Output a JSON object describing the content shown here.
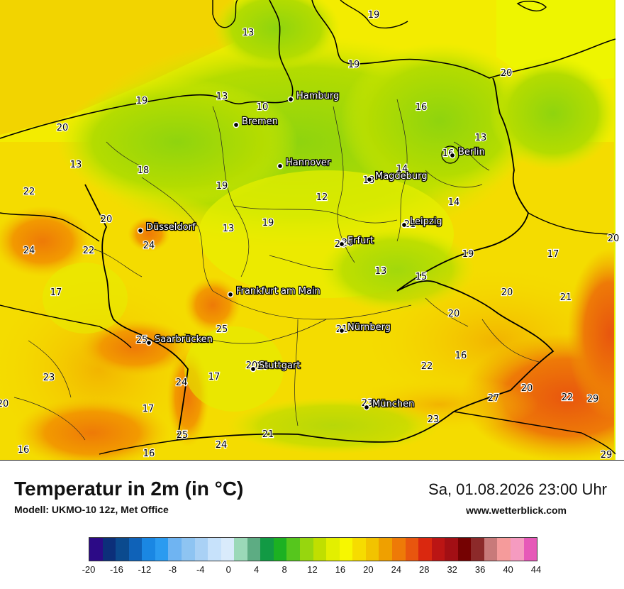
{
  "map": {
    "cities": [
      {
        "name": "Hamburg"
      },
      {
        "name": "Bremen"
      },
      {
        "name": "Berlin"
      },
      {
        "name": "Hannover"
      },
      {
        "name": "Magdeburg"
      },
      {
        "name": "Düsseldorf"
      },
      {
        "name": "Leipzig"
      },
      {
        "name": "Erfurt"
      },
      {
        "name": "Frankfurt am Main"
      },
      {
        "name": "Nürnberg"
      },
      {
        "name": "Saarbrücken"
      },
      {
        "name": "Stuttgart"
      },
      {
        "name": "München"
      }
    ],
    "values": [
      "13",
      "19",
      "19",
      "20",
      "10",
      "16",
      "19",
      "13",
      "20",
      "18",
      "13",
      "13",
      "16",
      "19",
      "12",
      "14",
      "22",
      "14",
      "13",
      "19",
      "24",
      "22",
      "24",
      "18",
      "20",
      "17",
      "13",
      "15",
      "20",
      "21",
      "25",
      "20",
      "25",
      "21",
      "16",
      "17",
      "22",
      "24",
      "23",
      "17",
      "20",
      "27",
      "20",
      "29",
      "20",
      "17",
      "19",
      "23",
      "25",
      "24",
      "16",
      "29",
      "10",
      "16",
      "21",
      "23",
      "20",
      "20",
      "20",
      "21",
      "22"
    ]
  },
  "header": {
    "title": "Temperatur in 2m (in °C)",
    "model": "Modell: UKMO-10 12z, Met Office",
    "datetime": "Sa, 01.08.2026 23:00 Uhr",
    "website": "www.wetterblick.com"
  },
  "legend": {
    "colors": [
      "#2c0a86",
      "#0c2f7a",
      "#0b4a8e",
      "#0f62b8",
      "#1a87e3",
      "#2b9bf0",
      "#6fb4f2",
      "#8ec4f2",
      "#a9d1f5",
      "#c7e2fb",
      "#d9ebfb",
      "#9bd9b8",
      "#5dac83",
      "#129a44",
      "#1cb122",
      "#56c61d",
      "#97d60e",
      "#c0df00",
      "#e3ef00",
      "#f7f700",
      "#f6dc00",
      "#f2c300",
      "#efa000",
      "#ee7a07",
      "#e8560e",
      "#da280f",
      "#bb1514",
      "#a20f14",
      "#750202",
      "#8c2a2a",
      "#c87a7a",
      "#f59b9b",
      "#f59bc0",
      "#e659b8"
    ],
    "ticks": [
      "-20",
      "-16",
      "-12",
      "-8",
      "-4",
      "0",
      "4",
      "8",
      "12",
      "16",
      "20",
      "24",
      "28",
      "32",
      "36",
      "40",
      "44"
    ]
  }
}
